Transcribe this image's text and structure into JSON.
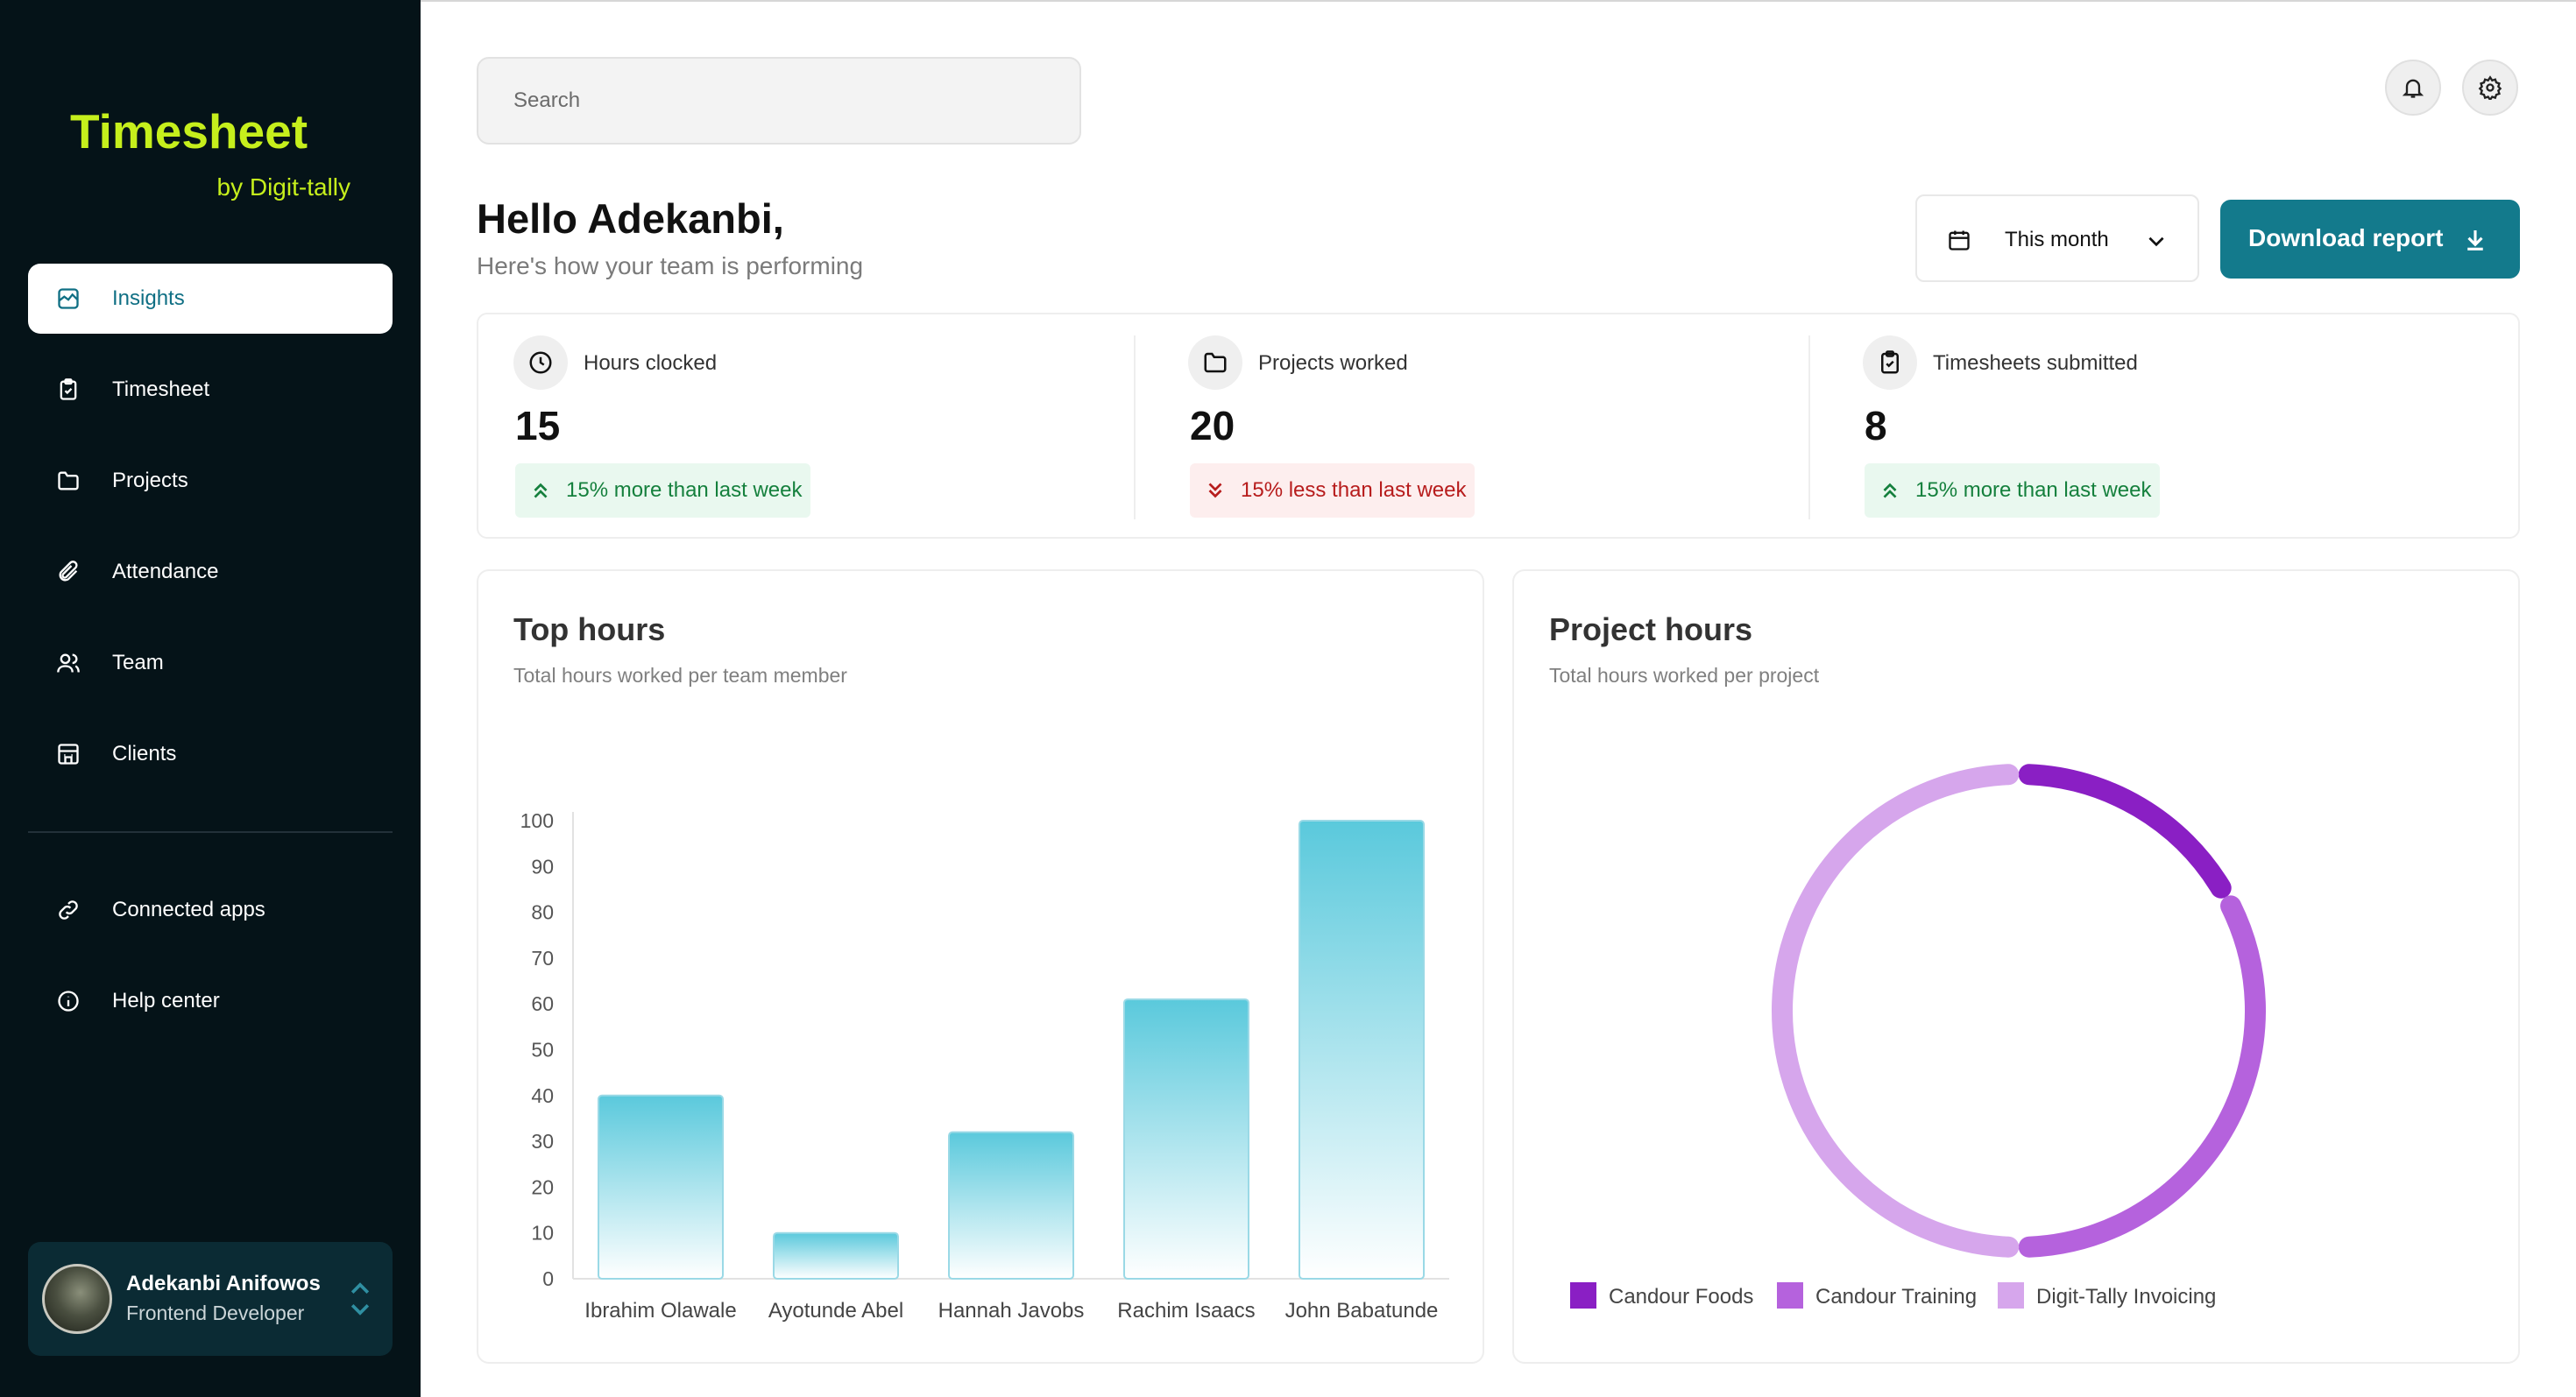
{
  "brand": {
    "name": "Timesheet",
    "sub": "by Digit-tally"
  },
  "sidebar": {
    "items": [
      {
        "label": "Insights",
        "icon": "chart-image-icon"
      },
      {
        "label": "Timesheet",
        "icon": "clipboard-check-icon"
      },
      {
        "label": "Projects",
        "icon": "folder-icon"
      },
      {
        "label": "Attendance",
        "icon": "paperclip-icon"
      },
      {
        "label": "Team",
        "icon": "users-icon"
      },
      {
        "label": "Clients",
        "icon": "building-icon"
      }
    ],
    "bottom_items": [
      {
        "label": "Connected apps",
        "icon": "link-icon"
      },
      {
        "label": "Help center",
        "icon": "info-icon"
      }
    ],
    "user": {
      "name": "Adekanbi Anifowos",
      "role": "Frontend Developer"
    }
  },
  "search": {
    "placeholder": "Search"
  },
  "header": {
    "greeting": "Hello Adekanbi,",
    "subtitle": "Here's how your team is performing",
    "period": "This month",
    "download_label": "Download report"
  },
  "stats": [
    {
      "label": "Hours clocked",
      "value": "15",
      "change": "15% more than last week",
      "trend": "up"
    },
    {
      "label": "Projects worked",
      "value": "20",
      "change": "15% less than last week",
      "trend": "down"
    },
    {
      "label": "Timesheets submitted",
      "value": "8",
      "change": "15% more than last week",
      "trend": "up"
    }
  ],
  "top_hours": {
    "title": "Top hours",
    "subtitle": "Total hours worked per team member"
  },
  "project_hours": {
    "title": "Project hours",
    "subtitle": "Total hours worked per project"
  },
  "colors": {
    "accent": "#137a8c",
    "brand": "#c6ef1c",
    "sidebar": "#051318"
  },
  "chart_data": [
    {
      "type": "bar",
      "title": "Top hours",
      "categories": [
        "Ibrahim Olawale",
        "Ayotunde Abel",
        "Hannah Javobs",
        "Rachim Isaacs",
        "John Babatunde"
      ],
      "values": [
        40,
        10,
        32,
        61,
        100
      ],
      "ylim": [
        0,
        100
      ],
      "yticks": [
        0,
        10,
        20,
        30,
        40,
        50,
        60,
        70,
        80,
        90,
        100
      ],
      "xlabel": "",
      "ylabel": ""
    },
    {
      "type": "pie",
      "title": "Project hours",
      "labels": [
        "Candour Foods",
        "Candour Training",
        "Digit-Tally Invoicing"
      ],
      "values": [
        17,
        33,
        50
      ],
      "colors": [
        "#8a1fc4",
        "#b562dd",
        "#d6a6ec"
      ],
      "legend": "bottom-left"
    }
  ]
}
